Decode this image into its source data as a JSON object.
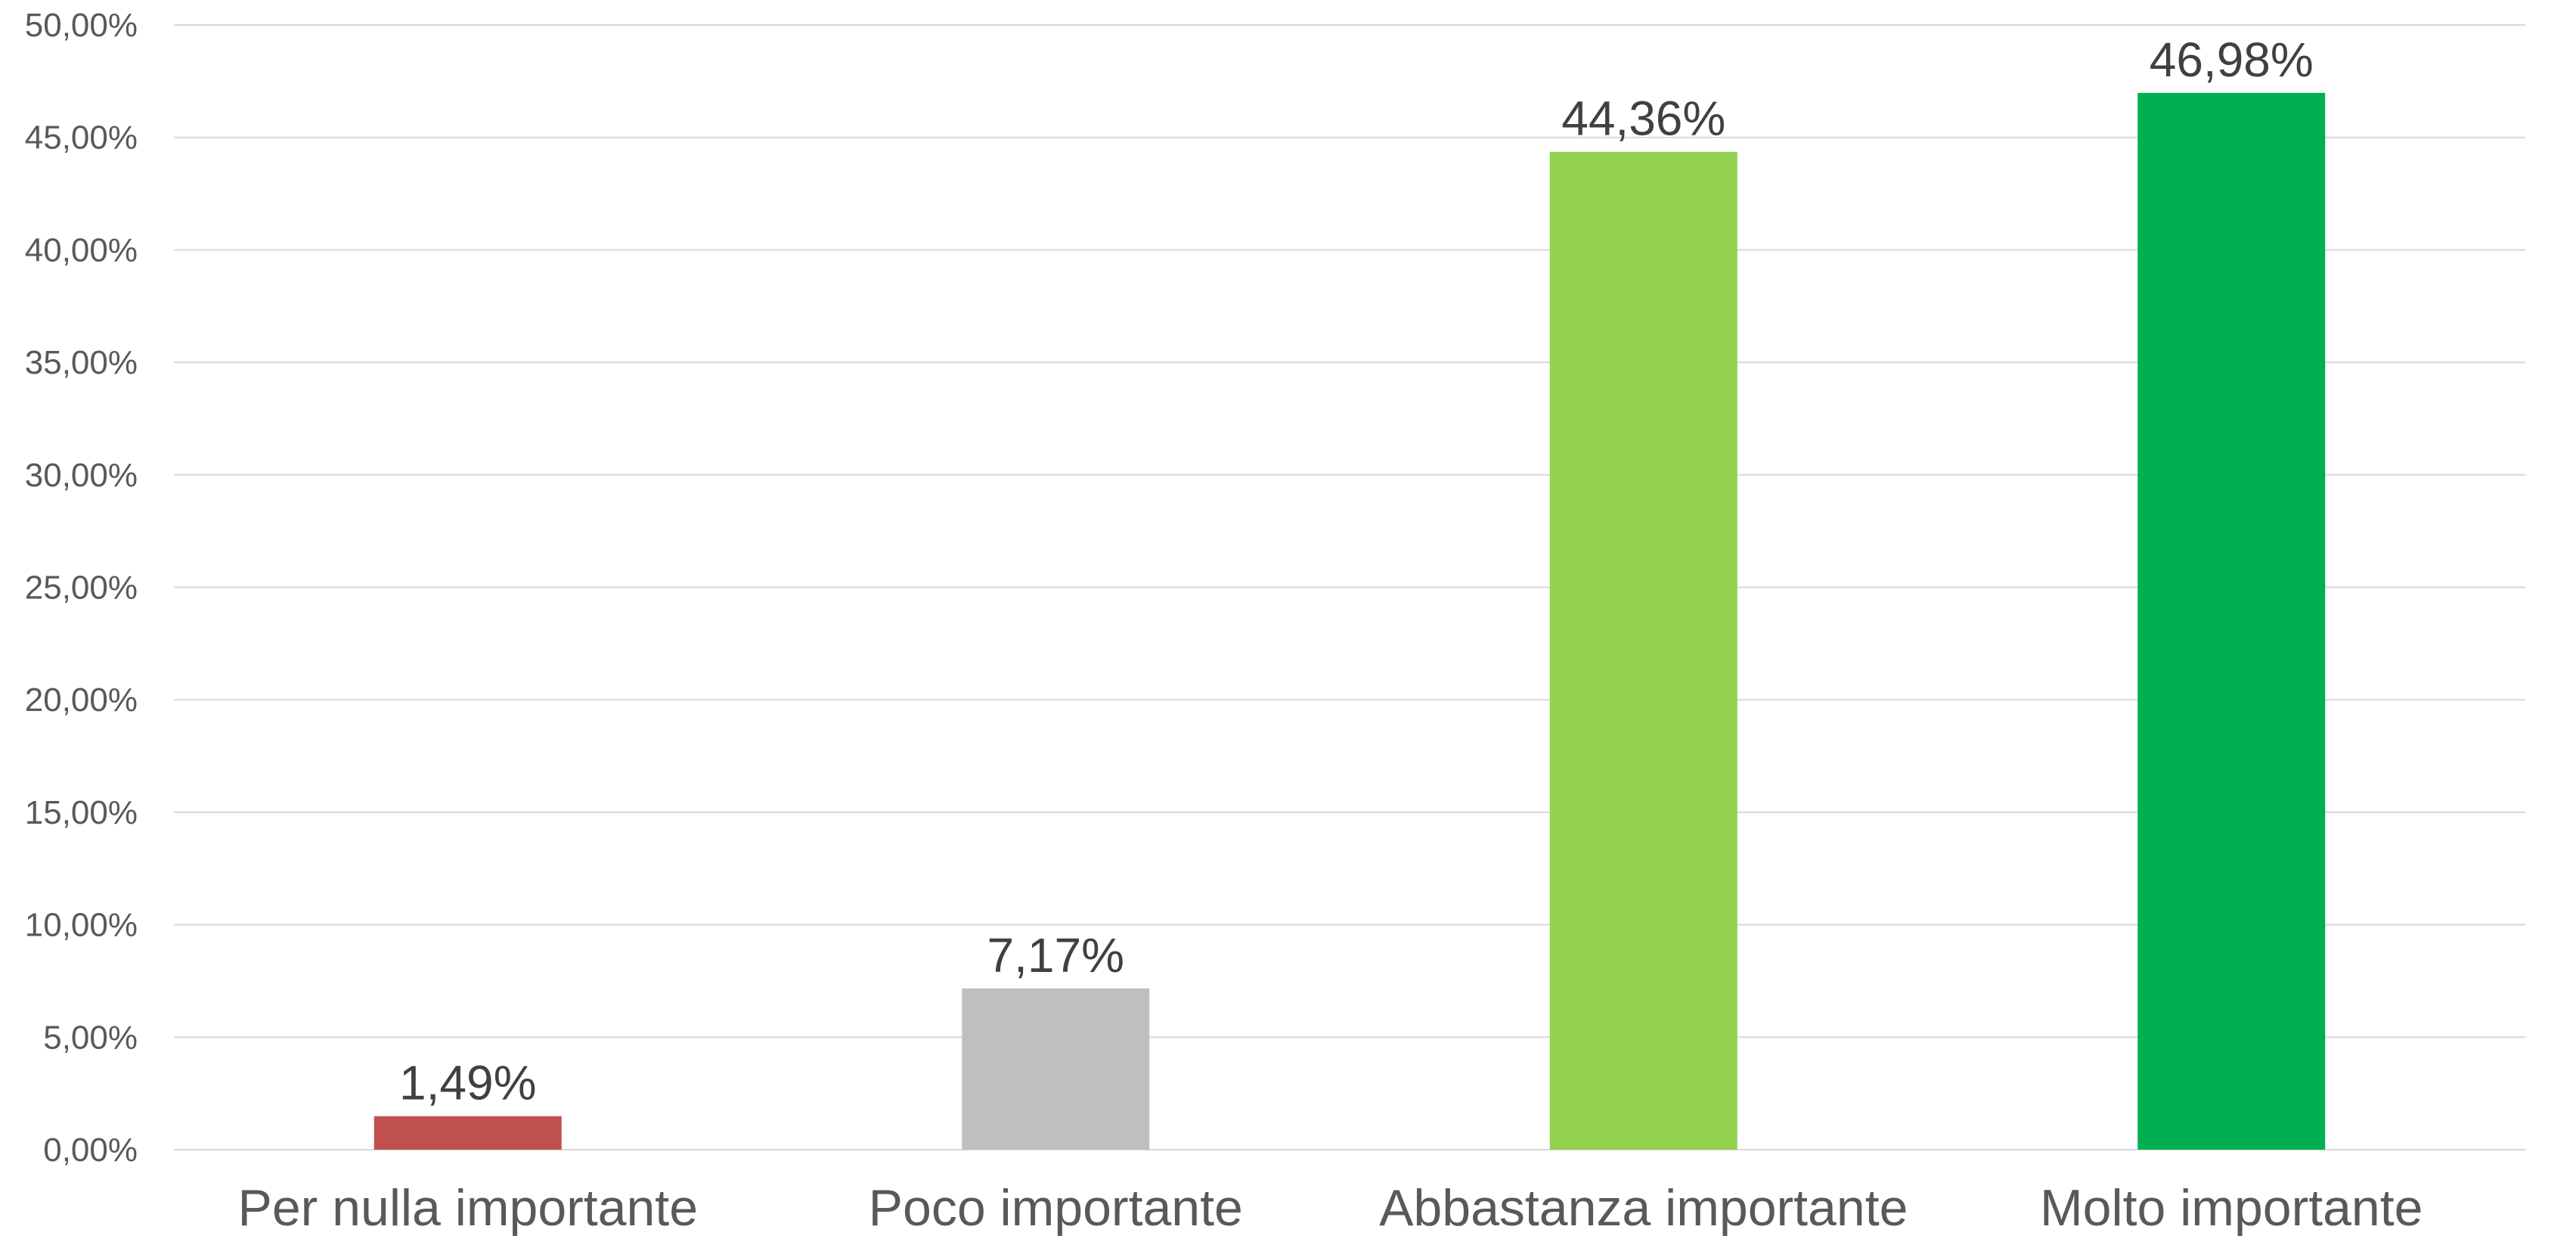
{
  "chart_data": {
    "type": "bar",
    "categories": [
      "Per nulla importante",
      "Poco importante",
      "Abbastanza importante",
      "Molto importante"
    ],
    "values": [
      1.49,
      7.17,
      44.36,
      46.98
    ],
    "value_labels": [
      "1,49%",
      "7,17%",
      "44,36%",
      "46,98%"
    ],
    "colors": [
      "#c0504d",
      "#bfbfbf",
      "#92d050",
      "#00b050"
    ],
    "title": "",
    "xlabel": "",
    "ylabel": "",
    "ylim": [
      0,
      50
    ],
    "yticks": [
      0,
      5,
      10,
      15,
      20,
      25,
      30,
      35,
      40,
      45,
      50
    ],
    "ytick_labels": [
      "0,00%",
      "5,00%",
      "10,00%",
      "15,00%",
      "20,00%",
      "25,00%",
      "30,00%",
      "35,00%",
      "40,00%",
      "45,00%",
      "50,00%"
    ],
    "grid": true,
    "legend": "none"
  }
}
